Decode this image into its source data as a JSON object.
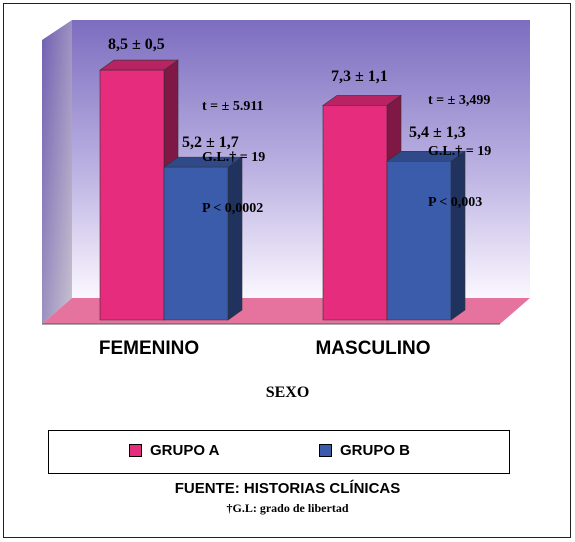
{
  "chart_data": {
    "type": "bar",
    "categories": [
      "FEMENINO",
      "MASCULINO"
    ],
    "series": [
      {
        "name": "GRUPO A",
        "values": [
          8.5,
          7.3
        ],
        "color": "#e62c7c"
      },
      {
        "name": "GRUPO B",
        "values": [
          5.2,
          5.4
        ],
        "color": "#3b5bab"
      }
    ],
    "value_labels": [
      [
        "8,5 ± 0,5",
        "7,3 ± 1,1"
      ],
      [
        "5,2 ± 1,7",
        "5,4 ± 1,3"
      ]
    ],
    "annotations": [
      [
        "t = ± 5.911",
        "G.L.† = 19",
        "P < 0,0002"
      ],
      [
        "t = ± 3,499",
        "G.L.† = 19",
        "P < 0,003"
      ]
    ],
    "xlabel": "SEXO",
    "ylim": [
      0,
      10
    ],
    "grid": false,
    "legend_placement": "bottom",
    "wall_color": "#8070c0"
  },
  "footer": {
    "source": "FUENTE: HISTORIAS CLÍNICAS",
    "note": "†G.L: grado de libertad"
  }
}
